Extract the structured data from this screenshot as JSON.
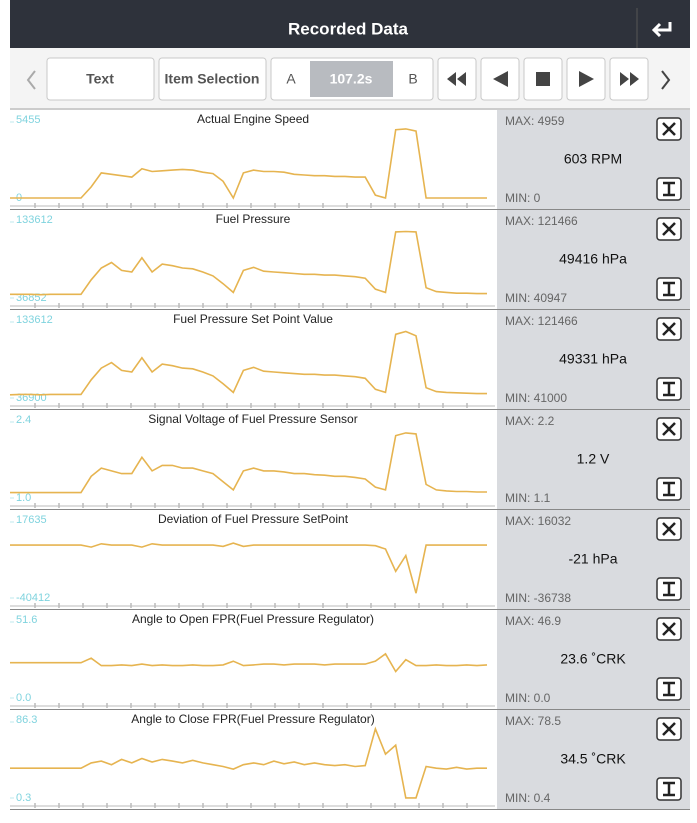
{
  "header": {
    "title": "Recorded Data"
  },
  "toolbar": {
    "text_button": "Text",
    "item_selection_button": "Item Selection",
    "marker_a": "A",
    "time": "107.2s",
    "marker_b": "B"
  },
  "panels": [
    {
      "chart": {
        "type": "line",
        "title": "Actual Engine Speed",
        "ylim": [
          0,
          5455
        ],
        "yticks": [
          0,
          5455
        ],
        "color": "#e6b450",
        "values": [
          0,
          0,
          0,
          0,
          0,
          0,
          0,
          0,
          800,
          1800,
          1700,
          1600,
          1500,
          2100,
          1900,
          1950,
          2000,
          2050,
          2000,
          1850,
          1750,
          1200,
          0,
          1800,
          2000,
          1900,
          1900,
          1850,
          1700,
          1650,
          1600,
          1600,
          1550,
          1550,
          1500,
          1500,
          200,
          0,
          4900,
          4959,
          4800,
          0,
          0,
          0,
          0,
          0,
          0,
          0
        ]
      },
      "max": "MAX: 4959",
      "current": "603 RPM",
      "min": "MIN: 0"
    },
    {
      "chart": {
        "type": "line",
        "title": "Fuel Pressure",
        "ylim": [
          36852,
          133612
        ],
        "yticks": [
          36852,
          133612
        ],
        "color": "#e6b450",
        "values": [
          41500,
          41500,
          41500,
          41000,
          41500,
          41500,
          41500,
          41500,
          60000,
          75000,
          82000,
          72000,
          70000,
          88000,
          70000,
          80000,
          78000,
          75000,
          74000,
          70000,
          65000,
          55000,
          44000,
          72000,
          76000,
          71000,
          70000,
          69000,
          68000,
          67000,
          67000,
          66000,
          66000,
          65000,
          64000,
          62000,
          48000,
          44000,
          121000,
          121466,
          121000,
          50000,
          45000,
          44000,
          43000,
          43000,
          42500,
          42500
        ]
      },
      "max": "MAX: 121466",
      "current": "49416 hPa",
      "min": "MIN: 40947"
    },
    {
      "chart": {
        "type": "line",
        "title": "Fuel Pressure Set Point Value",
        "ylim": [
          36900,
          133612
        ],
        "yticks": [
          36900,
          133612
        ],
        "color": "#e6b450",
        "values": [
          41000,
          41500,
          41500,
          41000,
          41500,
          41500,
          41500,
          41500,
          60000,
          75000,
          82000,
          72000,
          70000,
          88000,
          70000,
          80000,
          78000,
          75000,
          74000,
          70000,
          65000,
          55000,
          44000,
          72000,
          76000,
          71000,
          70000,
          69000,
          68000,
          67000,
          67000,
          66000,
          66000,
          65000,
          64000,
          62000,
          48000,
          44000,
          118000,
          121466,
          116000,
          50000,
          45000,
          44000,
          43500,
          43000,
          42500,
          42500
        ]
      },
      "max": "MAX: 121466",
      "current": "49331 hPa",
      "min": "MIN: 41000"
    },
    {
      "chart": {
        "type": "line",
        "title": "Signal Voltage of Fuel Pressure Sensor",
        "ylim": [
          1.0,
          2.4
        ],
        "yticks": [
          {
            "value": 1.0,
            "label": "1.0"
          },
          2.4
        ],
        "color": "#e6b450",
        "values": [
          1.1,
          1.1,
          1.1,
          1.1,
          1.1,
          1.1,
          1.1,
          1.1,
          1.4,
          1.55,
          1.5,
          1.45,
          1.45,
          1.75,
          1.5,
          1.6,
          1.6,
          1.55,
          1.55,
          1.5,
          1.45,
          1.3,
          1.15,
          1.5,
          1.55,
          1.5,
          1.5,
          1.48,
          1.45,
          1.45,
          1.43,
          1.42,
          1.4,
          1.4,
          1.38,
          1.35,
          1.2,
          1.15,
          2.15,
          2.2,
          2.18,
          1.25,
          1.15,
          1.13,
          1.12,
          1.12,
          1.11,
          1.11
        ]
      },
      "max": "MAX: 2.2",
      "current": "1.2 V",
      "min": "MIN: 1.1"
    },
    {
      "chart": {
        "type": "line",
        "title": "Deviation of Fuel Pressure SetPoint",
        "ylim": [
          -40412,
          17635
        ],
        "yticks": [
          -40412,
          17635
        ],
        "color": "#e6b450",
        "values": [
          0,
          0,
          0,
          0,
          0,
          0,
          0,
          0,
          -1500,
          1000,
          0,
          0,
          0,
          -1500,
          1000,
          0,
          0,
          0,
          0,
          0,
          0,
          -1000,
          1500,
          -1000,
          0,
          0,
          0,
          0,
          0,
          0,
          0,
          0,
          0,
          0,
          0,
          0,
          -500,
          -3000,
          -20000,
          -8000,
          -36738,
          0,
          0,
          0,
          0,
          0,
          0,
          0
        ]
      },
      "max": "MAX: 16032",
      "current": "-21 hPa",
      "min": "MIN: -36738"
    },
    {
      "chart": {
        "type": "line",
        "title": "Angle to Open FPR(Fuel Pressure Regulator)",
        "ylim": [
          0.0,
          51.6
        ],
        "yticks": [
          {
            "value": 0.0,
            "label": "0.0"
          },
          51.6
        ],
        "color": "#e6b450",
        "values": [
          24,
          24,
          24,
          24,
          24,
          24,
          24,
          24,
          27,
          22,
          22,
          22.5,
          22,
          23,
          22,
          22.5,
          22,
          22,
          22.5,
          22,
          22,
          22.5,
          25,
          22,
          22.5,
          23,
          23,
          22.5,
          23,
          23,
          23,
          22.5,
          23,
          23,
          23,
          23,
          25,
          30,
          18,
          26,
          22,
          22,
          22.5,
          22,
          22,
          22.5,
          22,
          22.5
        ]
      },
      "max": "MAX: 46.9",
      "current": "23.6 ˚CRK",
      "min": "MIN: 0.0"
    },
    {
      "chart": {
        "type": "line",
        "title": "Angle to Close FPR(Fuel Pressure Regulator)",
        "ylim": [
          0.3,
          86.3
        ],
        "yticks": [
          0.3,
          86.3
        ],
        "color": "#e6b450",
        "values": [
          34,
          34,
          34,
          34,
          34,
          34,
          34,
          34,
          40,
          42,
          38,
          44,
          40,
          45,
          41,
          44,
          42,
          40,
          43,
          40,
          38,
          36,
          33,
          38,
          40,
          38,
          42,
          39,
          41,
          38,
          40,
          38,
          37,
          38,
          36,
          37,
          78.5,
          50,
          60,
          0.4,
          0.4,
          36,
          34,
          33,
          35,
          33,
          34,
          34
        ]
      },
      "max": "MAX: 78.5",
      "current": "34.5 ˚CRK",
      "min": "MIN: 0.4"
    }
  ]
}
